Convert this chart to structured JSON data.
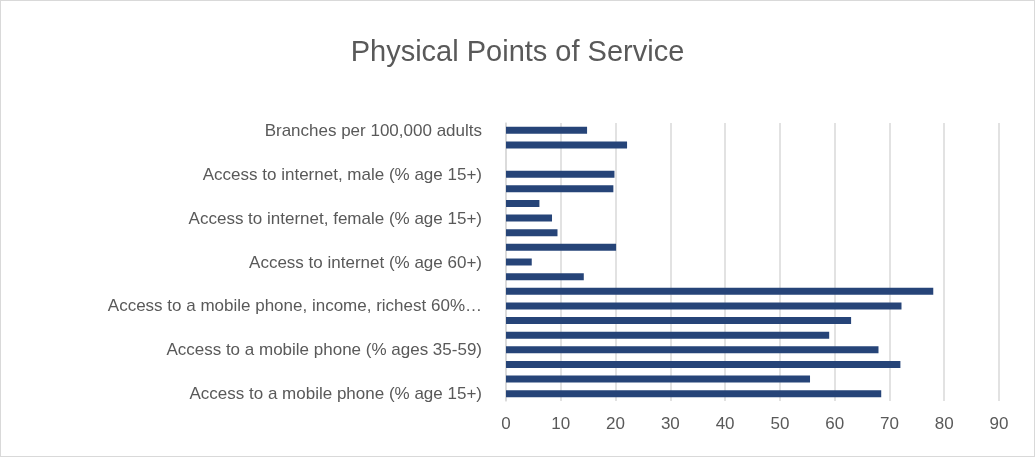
{
  "chart_data": {
    "type": "bar",
    "orientation": "horizontal",
    "title": "Physical Points of Service",
    "categories": [
      "Branches per 100,000 adults",
      null,
      null,
      "Access to internet, male (% age 15+)",
      null,
      null,
      "Access to internet, female (% age 15+)",
      null,
      null,
      "Access to internet (% age 60+)",
      null,
      null,
      "Access to a mobile phone, income, richest 60%…",
      null,
      null,
      "Access to a mobile phone (% ages 35-59)",
      null,
      null,
      "Access to a mobile phone (% age 15+)"
    ],
    "values": [
      14.8,
      22.1,
      null,
      19.8,
      19.6,
      6.1,
      8.4,
      9.4,
      20.1,
      4.7,
      14.2,
      78,
      72.2,
      63,
      59,
      68,
      72,
      55.5,
      68.5
    ],
    "color": "#264478",
    "xlim": [
      0,
      90
    ],
    "xticks": [
      0,
      10,
      20,
      30,
      40,
      50,
      60,
      70,
      80,
      90
    ],
    "grid": "x"
  }
}
